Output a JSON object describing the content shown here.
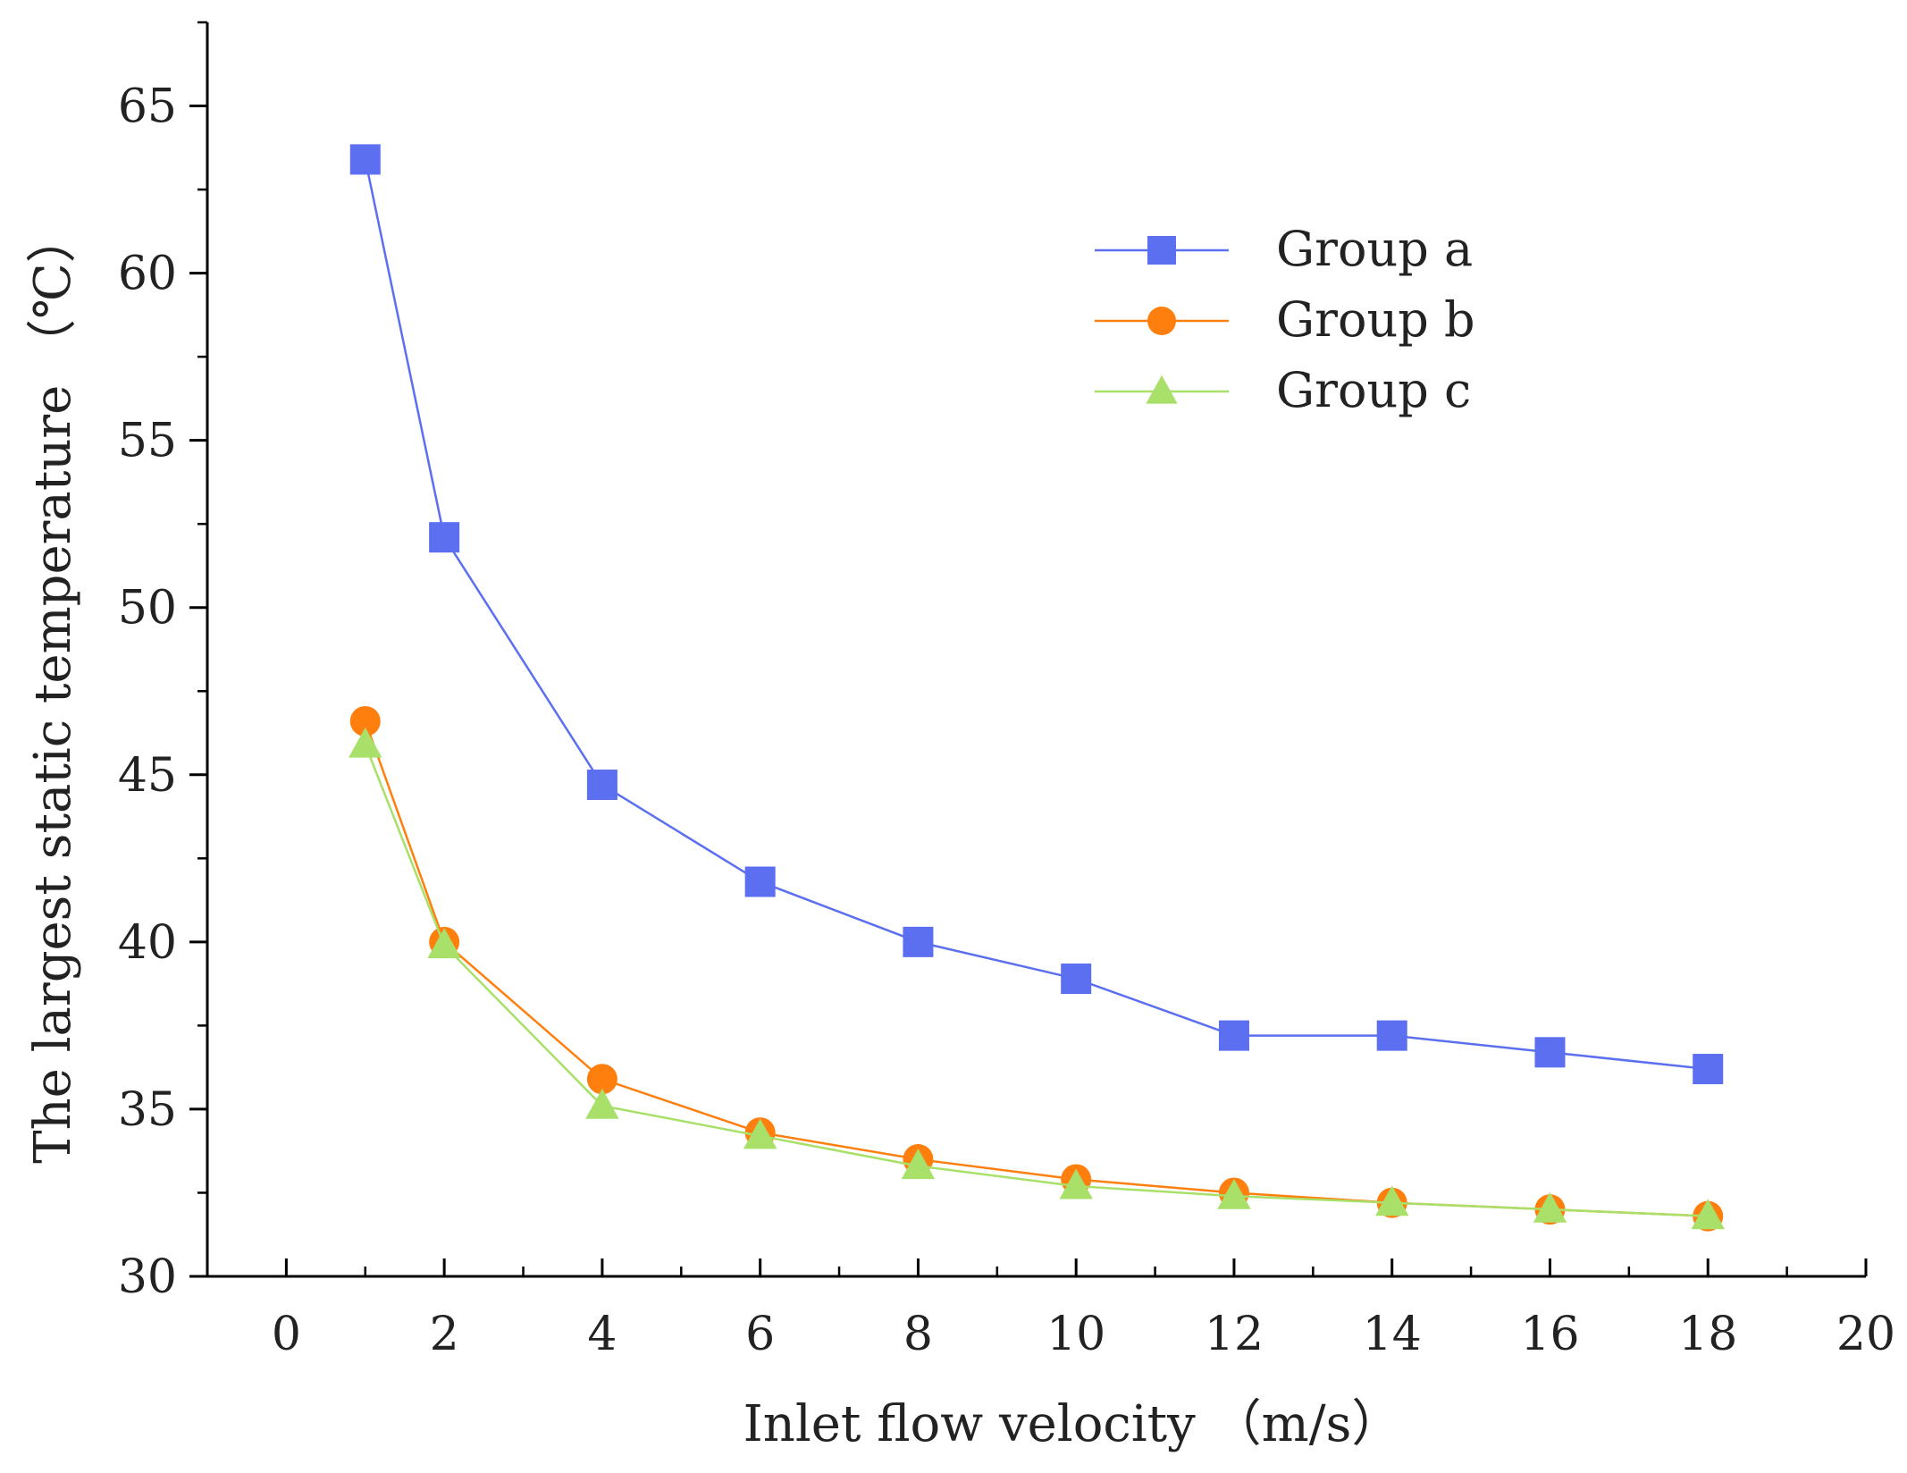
{
  "chart_data": {
    "type": "line",
    "title": "",
    "xlabel": "Inlet flow velocity （m/s）",
    "ylabel": "The largest static temperature （℃）",
    "xlim": [
      -1,
      20
    ],
    "ylim": [
      30,
      67.5
    ],
    "xticks": [
      0,
      2,
      4,
      6,
      8,
      10,
      12,
      14,
      16,
      18,
      20
    ],
    "yticks": [
      30,
      35,
      40,
      45,
      50,
      55,
      60,
      65
    ],
    "x": [
      1,
      2,
      4,
      6,
      8,
      10,
      12,
      14,
      16,
      18
    ],
    "series": [
      {
        "name": "Group a",
        "marker": "square",
        "color": "#5b6ff0",
        "values": [
          63.4,
          52.1,
          44.7,
          41.8,
          40.0,
          38.9,
          37.2,
          37.2,
          36.7,
          36.2
        ]
      },
      {
        "name": "Group b",
        "marker": "circle",
        "color": "#ff7f0e",
        "values": [
          46.6,
          40.0,
          35.9,
          34.3,
          33.5,
          32.9,
          32.5,
          32.2,
          32.0,
          31.8
        ]
      },
      {
        "name": "Group c",
        "marker": "triangle",
        "color": "#a8e06a",
        "values": [
          45.9,
          39.9,
          35.1,
          34.2,
          33.3,
          32.7,
          32.4,
          32.2,
          32.0,
          31.8
        ]
      }
    ],
    "grid": false,
    "legend_position": "top-right"
  }
}
